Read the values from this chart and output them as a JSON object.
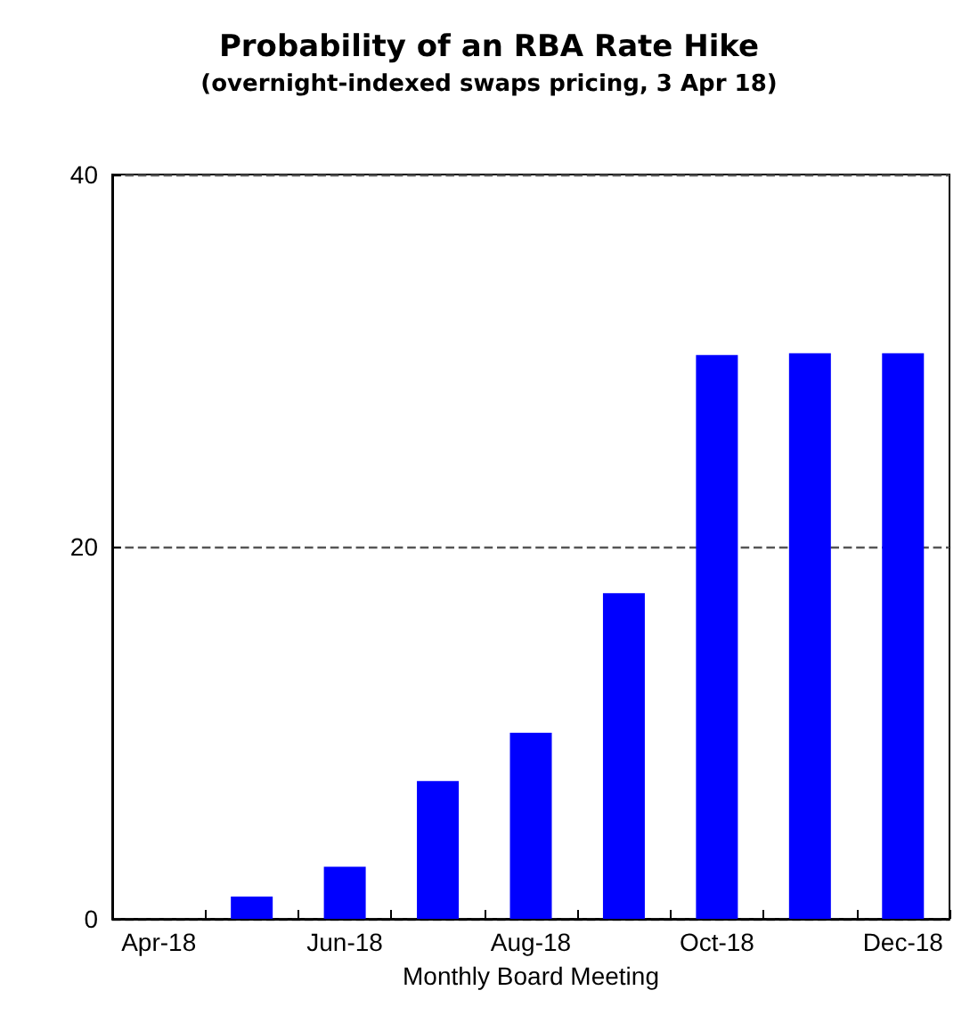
{
  "chart_data": {
    "type": "bar",
    "title": "Probability of an RBA Rate Hike",
    "subtitle": "(overnight-indexed swaps pricing, 3 Apr 18)",
    "xlabel": "Monthly Board Meeting",
    "categories": [
      "Apr-18",
      null,
      "Jun-18",
      null,
      "Aug-18",
      null,
      "Oct-18",
      null,
      "Dec-18"
    ],
    "values": [
      0,
      1.2,
      2.8,
      7.4,
      10,
      17.5,
      30.3,
      30.4,
      30.4
    ],
    "color": "#0000ff",
    "ylim": [
      0,
      40
    ],
    "yticks": [
      0,
      20,
      40
    ],
    "grid": "y",
    "line_style": "dashed"
  }
}
